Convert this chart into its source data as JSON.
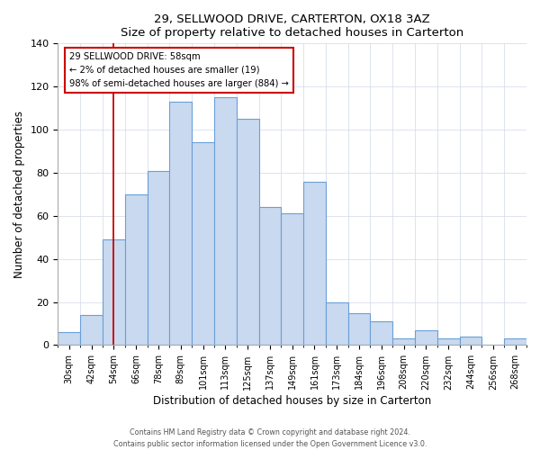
{
  "title": "29, SELLWOOD DRIVE, CARTERTON, OX18 3AZ",
  "subtitle": "Size of property relative to detached houses in Carterton",
  "xlabel": "Distribution of detached houses by size in Carterton",
  "ylabel": "Number of detached properties",
  "categories": [
    "30sqm",
    "42sqm",
    "54sqm",
    "66sqm",
    "78sqm",
    "89sqm",
    "101sqm",
    "113sqm",
    "125sqm",
    "137sqm",
    "149sqm",
    "161sqm",
    "173sqm",
    "184sqm",
    "196sqm",
    "208sqm",
    "220sqm",
    "232sqm",
    "244sqm",
    "256sqm",
    "268sqm"
  ],
  "values": [
    6,
    14,
    49,
    70,
    81,
    113,
    94,
    115,
    105,
    64,
    61,
    76,
    20,
    15,
    11,
    3,
    7,
    3,
    4,
    0,
    3
  ],
  "bar_color": "#c9d9ef",
  "bar_edge_color": "#6a9fd8",
  "ylim": [
    0,
    140
  ],
  "yticks": [
    0,
    20,
    40,
    60,
    80,
    100,
    120,
    140
  ],
  "vline_x": 2.5,
  "vline_color": "#cc0000",
  "annotation_title": "29 SELLWOOD DRIVE: 58sqm",
  "annotation_line1": "← 2% of detached houses are smaller (19)",
  "annotation_line2": "98% of semi-detached houses are larger (884) →",
  "annotation_box_color": "#ffffff",
  "annotation_box_edge": "#cc0000",
  "footer1": "Contains HM Land Registry data © Crown copyright and database right 2024.",
  "footer2": "Contains public sector information licensed under the Open Government Licence v3.0.",
  "background_color": "#ffffff",
  "grid_color": "#d0d8e8"
}
